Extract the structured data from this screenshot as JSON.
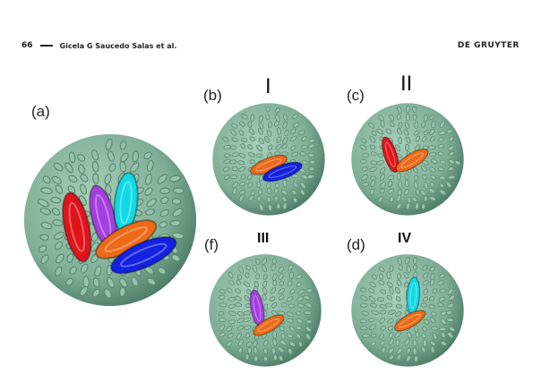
{
  "header": {
    "page_number": "66",
    "authors": "Gicela G Saucedo Salas et al.",
    "publisher": "DE GRUYTER"
  },
  "figure": {
    "colors": {
      "capsid": "#7fae97",
      "capsid_dark": "#4f7e68",
      "red": "#e0141a",
      "purple": "#a43fe0",
      "cyan": "#10d8e6",
      "orange": "#ee6a18",
      "blue": "#1322e0"
    },
    "panels": [
      {
        "id": "a",
        "label": "(a)",
        "roman": "",
        "highlights": [
          "red",
          "purple",
          "cyan",
          "orange",
          "blue"
        ]
      },
      {
        "id": "b",
        "label": "(b)",
        "roman": "I",
        "highlights": [
          "orange",
          "blue"
        ]
      },
      {
        "id": "c",
        "label": "(c)",
        "roman": "II",
        "highlights": [
          "red",
          "orange"
        ]
      },
      {
        "id": "f",
        "label": "(f)",
        "roman": "III",
        "highlights": [
          "purple",
          "orange"
        ]
      },
      {
        "id": "d",
        "label": "(d)",
        "roman": "IV",
        "highlights": [
          "cyan",
          "orange"
        ]
      }
    ]
  }
}
